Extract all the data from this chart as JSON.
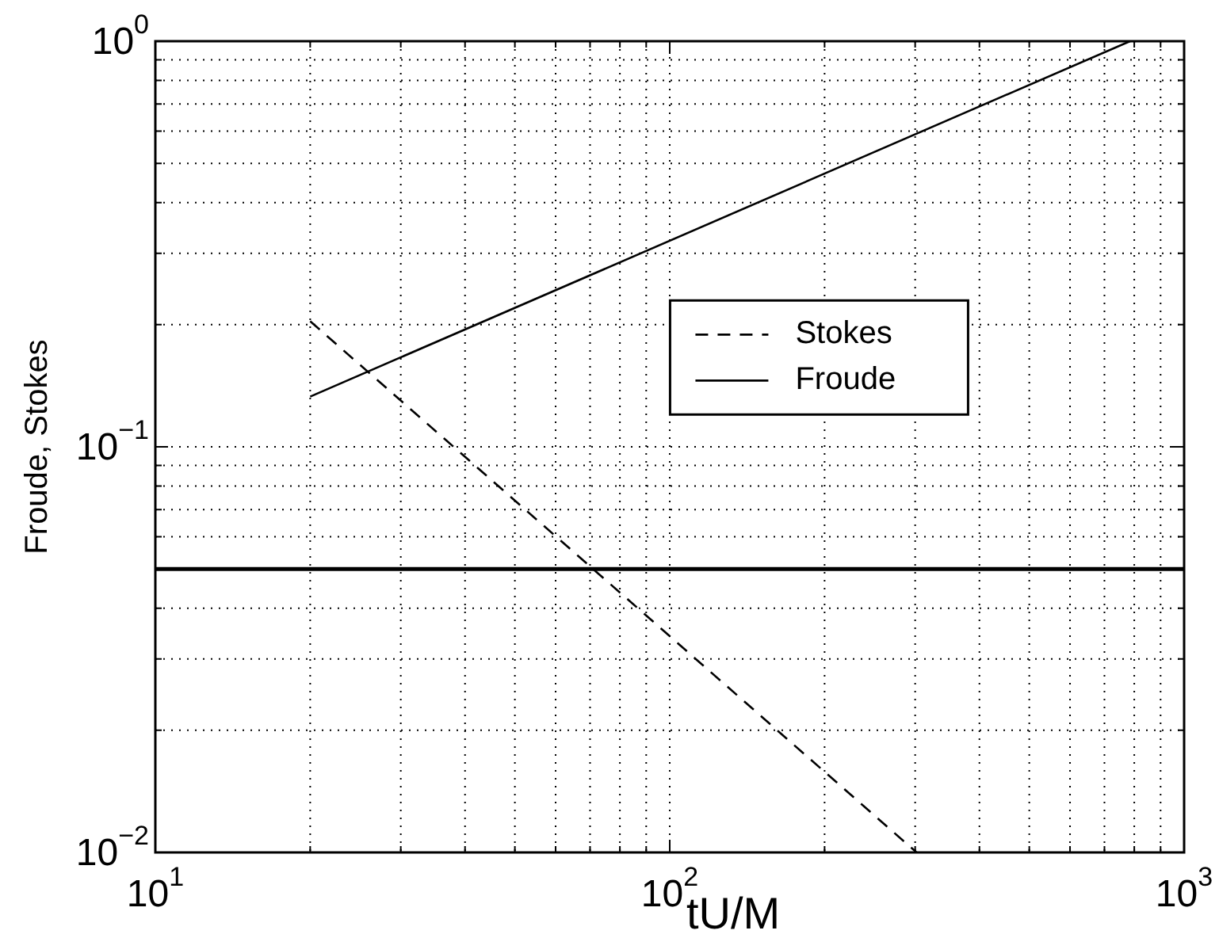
{
  "chart_data": {
    "type": "line",
    "xlabel": "tU/M",
    "ylabel": "Froude, Stokes",
    "log": "xy",
    "grid": true,
    "legend": "center",
    "marker": "none",
    "line_style": "solid",
    "xlim": [
      10,
      1000
    ],
    "ylim": [
      0.01,
      1
    ],
    "xticks": [
      {
        "value": 10,
        "label": "10$^{1}$"
      },
      {
        "value": 20,
        "label": null
      },
      {
        "value": 30,
        "label": null
      },
      {
        "value": 40,
        "label": null
      },
      {
        "value": 50,
        "label": null
      },
      {
        "value": 60,
        "label": null
      },
      {
        "value": 70,
        "label": null
      },
      {
        "value": 80,
        "label": null
      },
      {
        "value": 90,
        "label": null
      },
      {
        "value": 100,
        "label": "10$^{2}$"
      },
      {
        "value": 200,
        "label": null
      },
      {
        "value": 300,
        "label": null
      },
      {
        "value": 400,
        "label": null
      },
      {
        "value": 500,
        "label": null
      },
      {
        "value": 600,
        "label": null
      },
      {
        "value": 700,
        "label": null
      },
      {
        "value": 800,
        "label": null
      },
      {
        "value": 900,
        "label": null
      },
      {
        "value": 1000,
        "label": "10$^{3}$"
      }
    ],
    "yticks": [
      {
        "value": 0.01,
        "label": "10$^{−2}$"
      },
      {
        "value": 0.02,
        "label": null
      },
      {
        "value": 0.03,
        "label": null
      },
      {
        "value": 0.04,
        "label": null
      },
      {
        "value": 0.05,
        "label": null
      },
      {
        "value": 0.06,
        "label": null
      },
      {
        "value": 0.07,
        "label": null
      },
      {
        "value": 0.08,
        "label": null
      },
      {
        "value": 0.09,
        "label": null
      },
      {
        "value": 0.1,
        "label": "10$^{−1}$"
      },
      {
        "value": 0.2,
        "label": null
      },
      {
        "value": 0.3,
        "label": null
      },
      {
        "value": 0.4,
        "label": null
      },
      {
        "value": 0.5,
        "label": null
      },
      {
        "value": 0.6,
        "label": null
      },
      {
        "value": 0.7,
        "label": null
      },
      {
        "value": 0.8,
        "label": null
      },
      {
        "value": 0.9,
        "label": null
      },
      {
        "value": 1,
        "label": "10$^{0}$"
      }
    ],
    "series": [
      {
        "name": "Stokes",
        "color": "#000000",
        "line_style": "dashed",
        "x": [
          20,
          302
        ],
        "values": [
          0.204,
          0.01
        ]
      },
      {
        "name": "Froude",
        "color": "#000000",
        "x": [
          20,
          785
        ],
        "values": [
          0.133,
          1
        ]
      }
    ],
    "ref_lines": [
      {
        "axis": "y",
        "value": 0.05,
        "color": "#000000"
      }
    ]
  }
}
